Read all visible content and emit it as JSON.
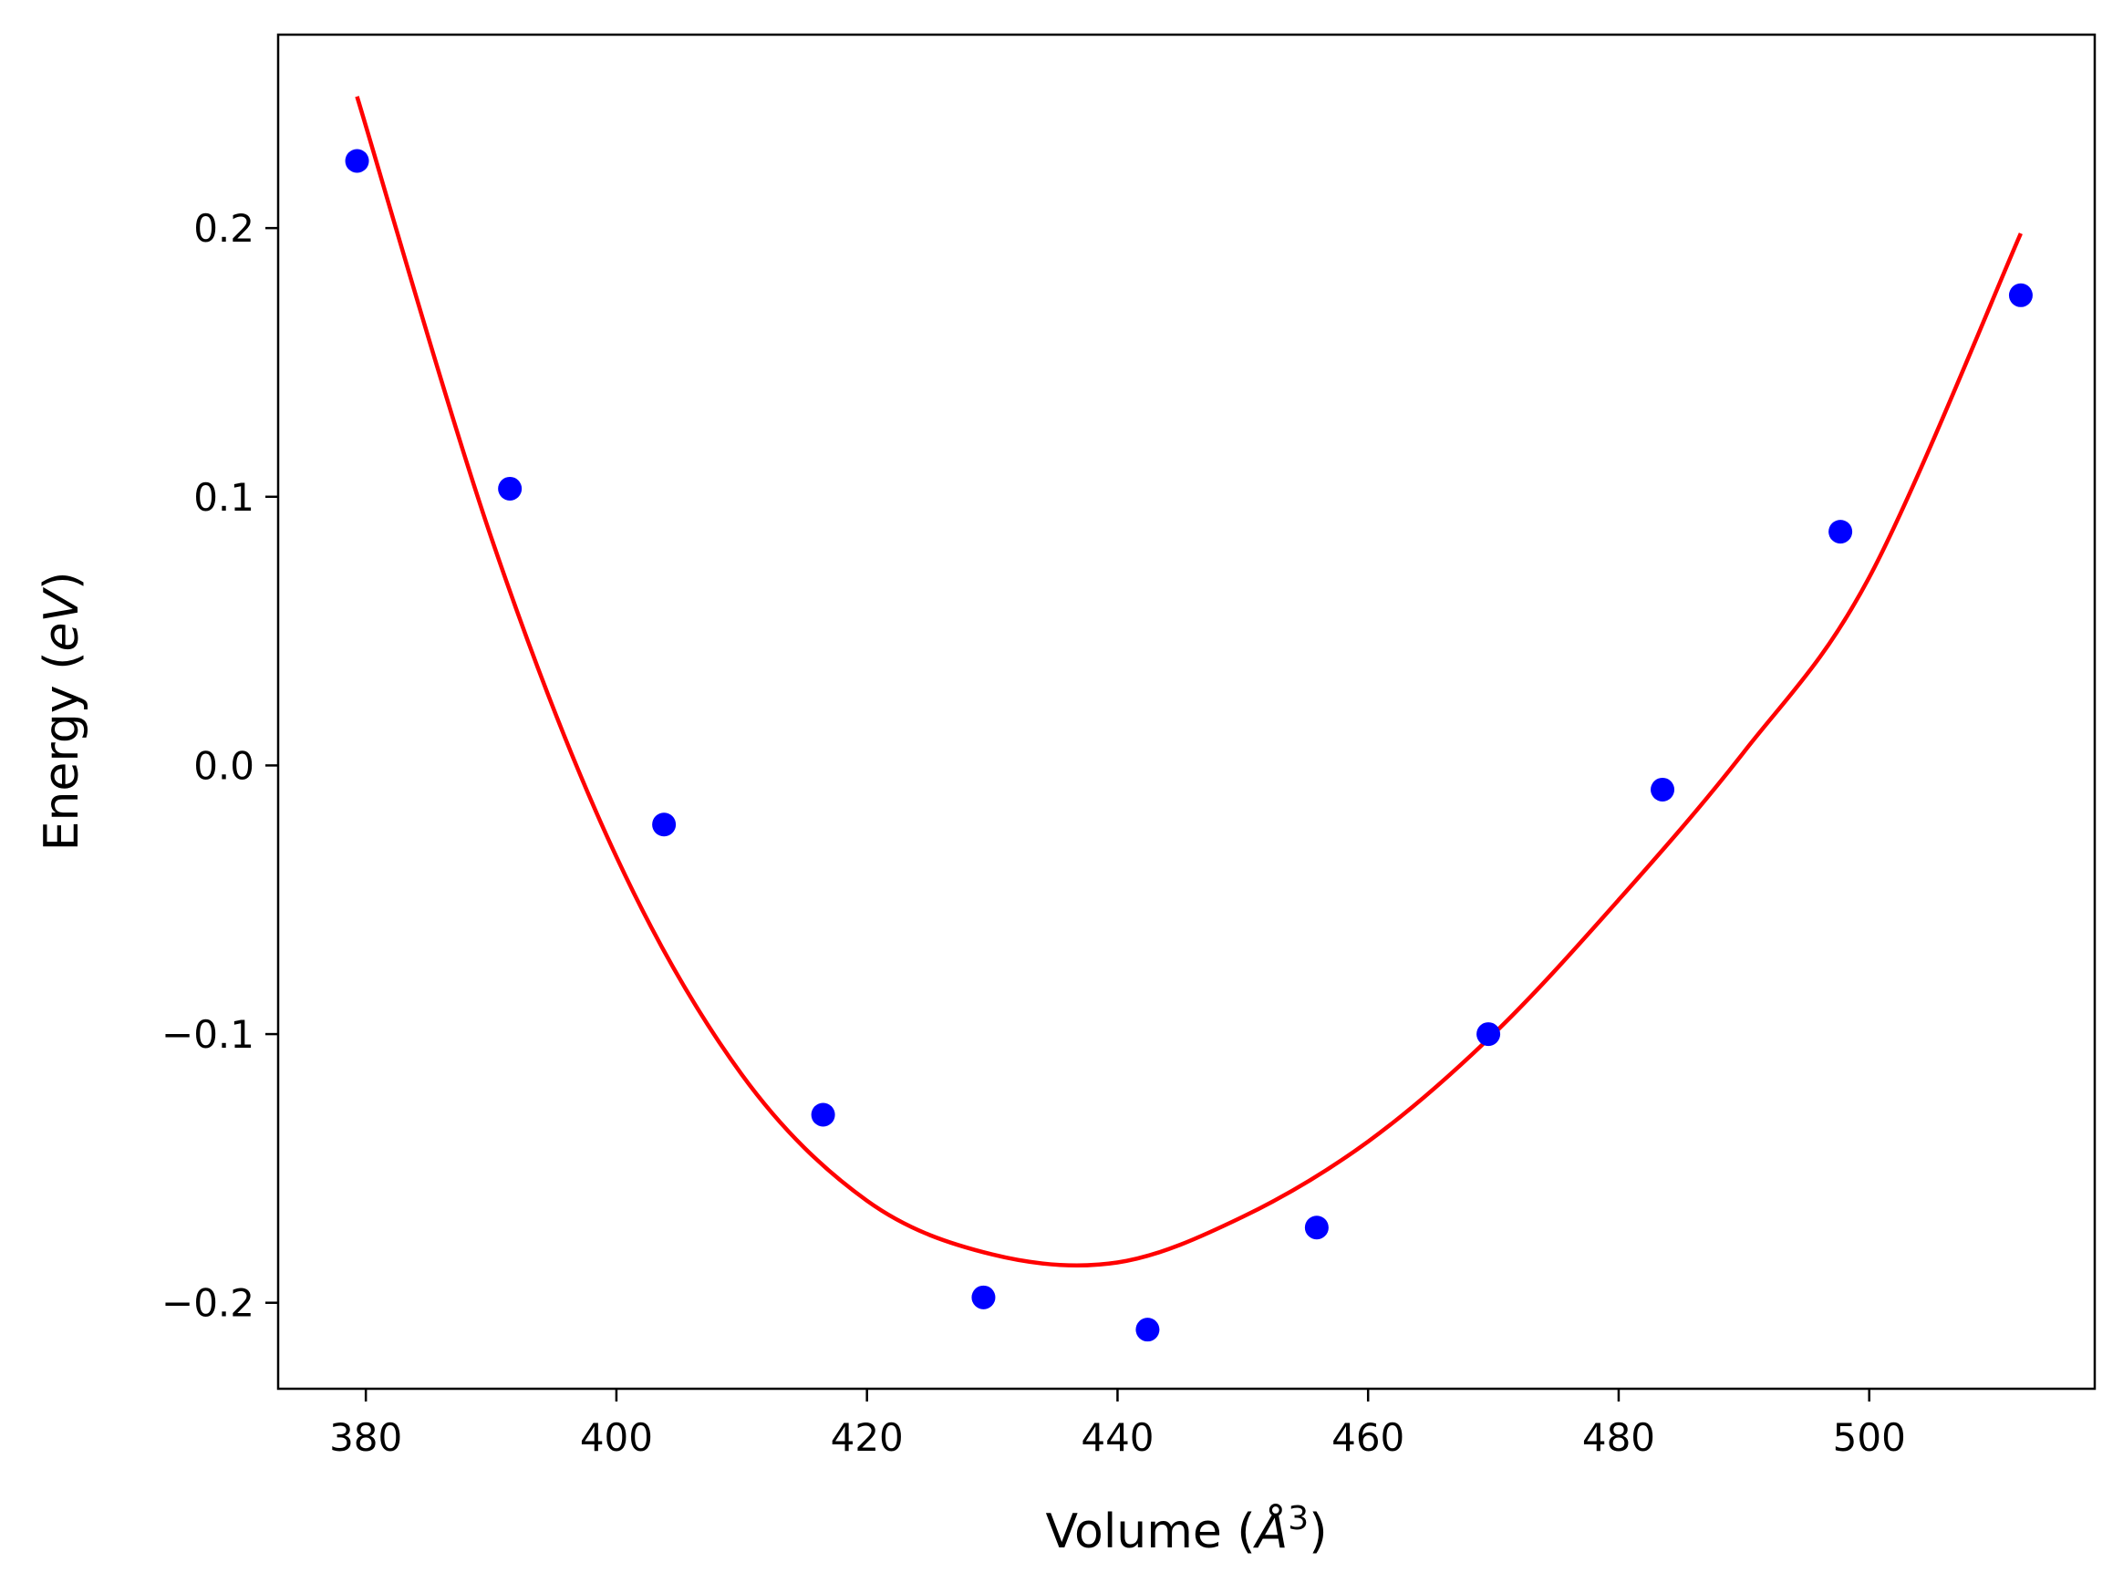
{
  "chart_data": {
    "type": "scatter",
    "xlabel": "Volume (",
    "xlabel_unit": "Å",
    "xlabel_sup": "3",
    "xlabel_close": ")",
    "ylabel": "Energy (",
    "ylabel_unit": "eV",
    "ylabel_close": ")",
    "xlim": [
      373.0,
      518.0
    ],
    "ylim": [
      -0.232,
      0.272
    ],
    "xticks": [
      380,
      400,
      420,
      440,
      460,
      480,
      500
    ],
    "yticks": [
      -0.2,
      -0.1,
      0.0,
      0.1,
      0.2
    ],
    "xtick_labels": [
      "380",
      "400",
      "420",
      "440",
      "460",
      "480",
      "500"
    ],
    "ytick_labels": [
      "−0.2",
      "−0.1",
      "0.0",
      "0.1",
      "0.2"
    ],
    "grid": false,
    "series": [
      {
        "kind": "scatter",
        "color": "#0000ff",
        "x": [
          379.3,
          391.5,
          403.8,
          416.5,
          429.3,
          442.4,
          455.9,
          469.6,
          483.5,
          497.7,
          512.1
        ],
        "y": [
          0.225,
          0.103,
          -0.022,
          -0.13,
          -0.198,
          -0.21,
          -0.172,
          -0.1,
          -0.009,
          0.087,
          0.175
        ]
      },
      {
        "kind": "line",
        "color": "#ff0000",
        "x": [
          379.3,
          390,
          400,
          410,
          420,
          430,
          440,
          450,
          460,
          470,
          480,
          490,
          500,
          512.1
        ],
        "y": [
          0.249,
          0.085,
          -0.034,
          -0.115,
          -0.162,
          -0.182,
          -0.185,
          -0.168,
          -0.14,
          -0.1,
          -0.05,
          0.005,
          0.07,
          0.198
        ]
      }
    ]
  }
}
